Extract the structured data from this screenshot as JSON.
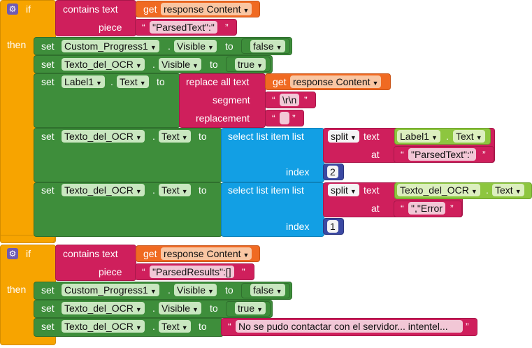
{
  "if_label": "if",
  "then_label": "then",
  "contains_text": "contains  text",
  "piece_label": "piece",
  "get_label": "get",
  "response_content": "response Content",
  "set_label": "set",
  "to_label": "to",
  "dot": ".",
  "quote_open": "“",
  "quote_close": "”",
  "components": {
    "progress": "Custom_Progress1",
    "ocr": "Texto_del_OCR",
    "label1": "Label1"
  },
  "props": {
    "visible": "Visible",
    "text": "Text"
  },
  "values": {
    "false": "false",
    "true": "true"
  },
  "block1": {
    "piece": "\"ParsedText\":\"",
    "replace_all_text": "replace all text",
    "segment_label": "segment",
    "segment_value": "\\r\\n",
    "replacement_label": "replacement",
    "replacement_value": " ",
    "select_list_item": "select list item  list",
    "split_label": "split",
    "text_label": "text",
    "at_label": "at",
    "index_label": "index",
    "at_value_1": "\"ParsedText\":\"",
    "index_1": "2",
    "at_value_2": "\",\"Error",
    "index_2": "1"
  },
  "block2": {
    "piece": "\"ParsedResults\":[]",
    "message": "No se pudo contactar con el servidor... intentel..."
  },
  "colors": {
    "control": "#f7a400",
    "setter": "#3e8e3b",
    "text": "#cf1f5c",
    "getter": "#f06a22",
    "list": "#129fe4",
    "math": "#3b49a3",
    "component": "#8dc63f"
  }
}
